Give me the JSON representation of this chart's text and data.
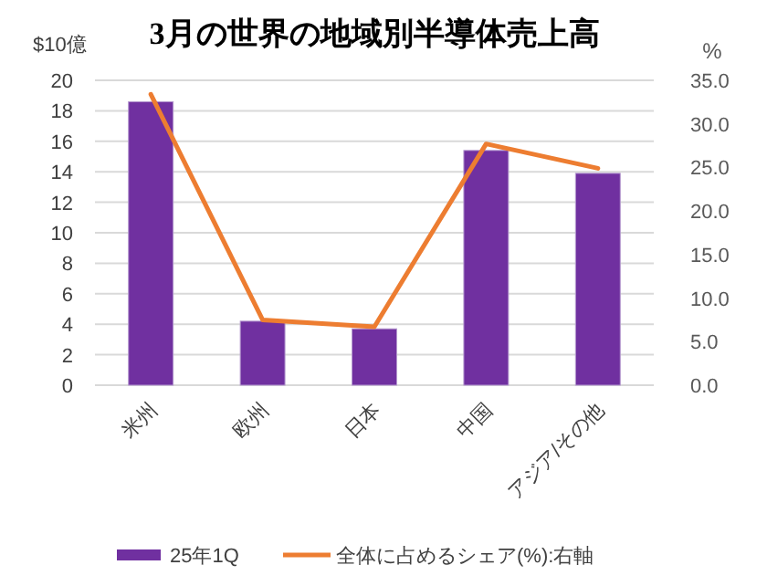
{
  "chart_data": {
    "type": "bar",
    "title": "3月の世界の地域別半導体売上高",
    "ylabel": "$10億",
    "y2label": "%",
    "categories": [
      "米州",
      "欧州",
      "日本",
      "中国",
      "アジア/その他"
    ],
    "series": [
      {
        "name": "25年1Q",
        "color": "#7030a0",
        "values": [
          18.6,
          4.2,
          3.7,
          15.4,
          13.9
        ]
      },
      {
        "name": "全体に占めるシェア(%):右軸",
        "type": "line",
        "axis": "y2",
        "color": "#ed7d31",
        "values": [
          33.4,
          7.5,
          6.7,
          27.7,
          24.9
        ]
      }
    ],
    "ylim": [
      0,
      20
    ],
    "yticks": [
      0,
      2,
      4,
      6,
      8,
      10,
      12,
      14,
      16,
      18,
      20
    ],
    "y2lim": [
      0,
      35
    ],
    "y2ticks": [
      {
        "value": 0,
        "label": "0.0"
      },
      {
        "value": 5,
        "label": "5.0"
      },
      {
        "value": 10,
        "label": "10.0"
      },
      {
        "value": 15,
        "label": "15.0"
      },
      {
        "value": 20,
        "label": "20.0"
      },
      {
        "value": 25,
        "label": "25.0"
      },
      {
        "value": 30,
        "label": "30.0"
      },
      {
        "value": 35,
        "label": "35.0"
      }
    ],
    "grid": "y",
    "legend": "bottom"
  }
}
